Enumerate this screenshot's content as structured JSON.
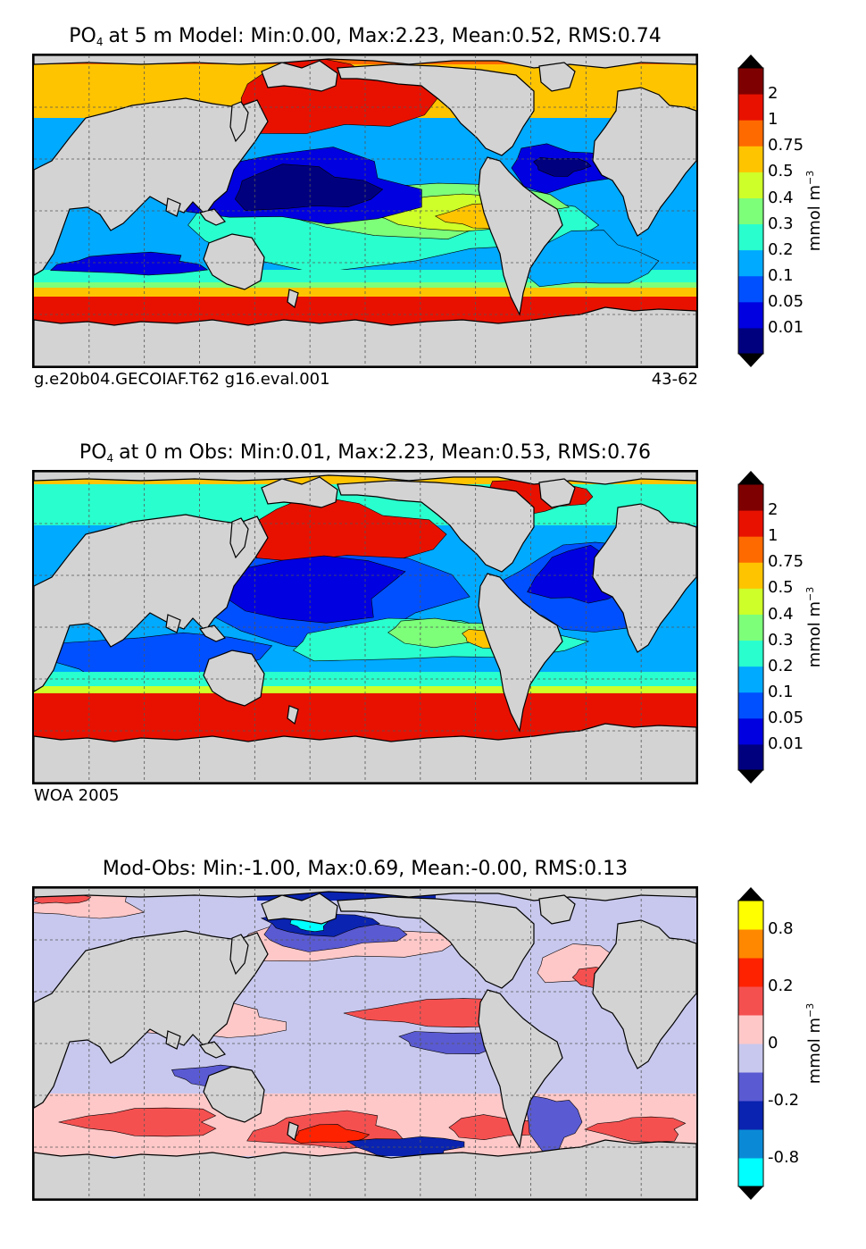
{
  "chart_data": [
    {
      "type": "heatmap",
      "variable": "PO",
      "variable_sub": "4",
      "title_rest": "at 5 m Model: Min:0.00, Max:2.23, Mean:0.52, RMS:0.74",
      "stats": {
        "min": 0.0,
        "max": 2.23,
        "mean": 0.52,
        "rms": 0.74
      },
      "colorbar": {
        "unit": "mmol m",
        "unit_exp": "−3",
        "ticks": [
          "2",
          "1",
          "0.75",
          "0.5",
          "0.4",
          "0.3",
          "0.2",
          "0.1",
          "0.05",
          "0.01"
        ],
        "levels": [
          0.01,
          0.05,
          0.1,
          0.2,
          0.3,
          0.4,
          0.5,
          0.75,
          1,
          2
        ],
        "colors": [
          "#00007f",
          "#0000e0",
          "#0050ff",
          "#00aaff",
          "#29ffce",
          "#7dff7a",
          "#ceff29",
          "#ffc400",
          "#ff6a00",
          "#e81100",
          "#7f0000"
        ],
        "extend": "both"
      },
      "caption_left": "g.e20b04.GECOIAF.T62 g16.eval.001",
      "caption_right": "43-62"
    },
    {
      "type": "heatmap",
      "variable": "PO",
      "variable_sub": "4",
      "title_rest": "at 0 m Obs: Min:0.01, Max:2.23, Mean:0.53, RMS:0.76",
      "stats": {
        "min": 0.01,
        "max": 2.23,
        "mean": 0.53,
        "rms": 0.76
      },
      "colorbar": {
        "unit": "mmol m",
        "unit_exp": "−3",
        "ticks": [
          "2",
          "1",
          "0.75",
          "0.5",
          "0.4",
          "0.3",
          "0.2",
          "0.1",
          "0.05",
          "0.01"
        ],
        "levels": [
          0.01,
          0.05,
          0.1,
          0.2,
          0.3,
          0.4,
          0.5,
          0.75,
          1,
          2
        ],
        "colors": [
          "#00007f",
          "#0000e0",
          "#0050ff",
          "#00aaff",
          "#29ffce",
          "#7dff7a",
          "#ceff29",
          "#ffc400",
          "#ff6a00",
          "#e81100",
          "#7f0000"
        ],
        "extend": "both"
      },
      "caption_left": "WOA 2005",
      "caption_right": ""
    },
    {
      "type": "heatmap",
      "variable": "",
      "variable_sub": "",
      "title_rest": "Mod-Obs: Min:-1.00, Max:0.69, Mean:-0.00, RMS:0.13",
      "stats": {
        "min": -1.0,
        "max": 0.69,
        "mean": -0.0,
        "rms": 0.13
      },
      "colorbar": {
        "unit": "mmol m",
        "unit_exp": "−3",
        "ticks": [
          "0.8",
          "0.2",
          "0",
          "-0.2",
          "-0.8"
        ],
        "levels": [
          -0.8,
          -0.4,
          -0.2,
          -0.1,
          0,
          0.1,
          0.2,
          0.4,
          0.8
        ],
        "colors": [
          "#00ffff",
          "#0a8ad6",
          "#0a23b0",
          "#5a5ad2",
          "#c8c8ee",
          "#ffc8c8",
          "#f55050",
          "#ff2200",
          "#ff8800",
          "#ffff00"
        ],
        "extend": "both"
      },
      "caption_left": "",
      "caption_right": ""
    }
  ],
  "colors": {
    "land": "#d3d3d3",
    "grid": "#555555",
    "coast": "#000000"
  }
}
